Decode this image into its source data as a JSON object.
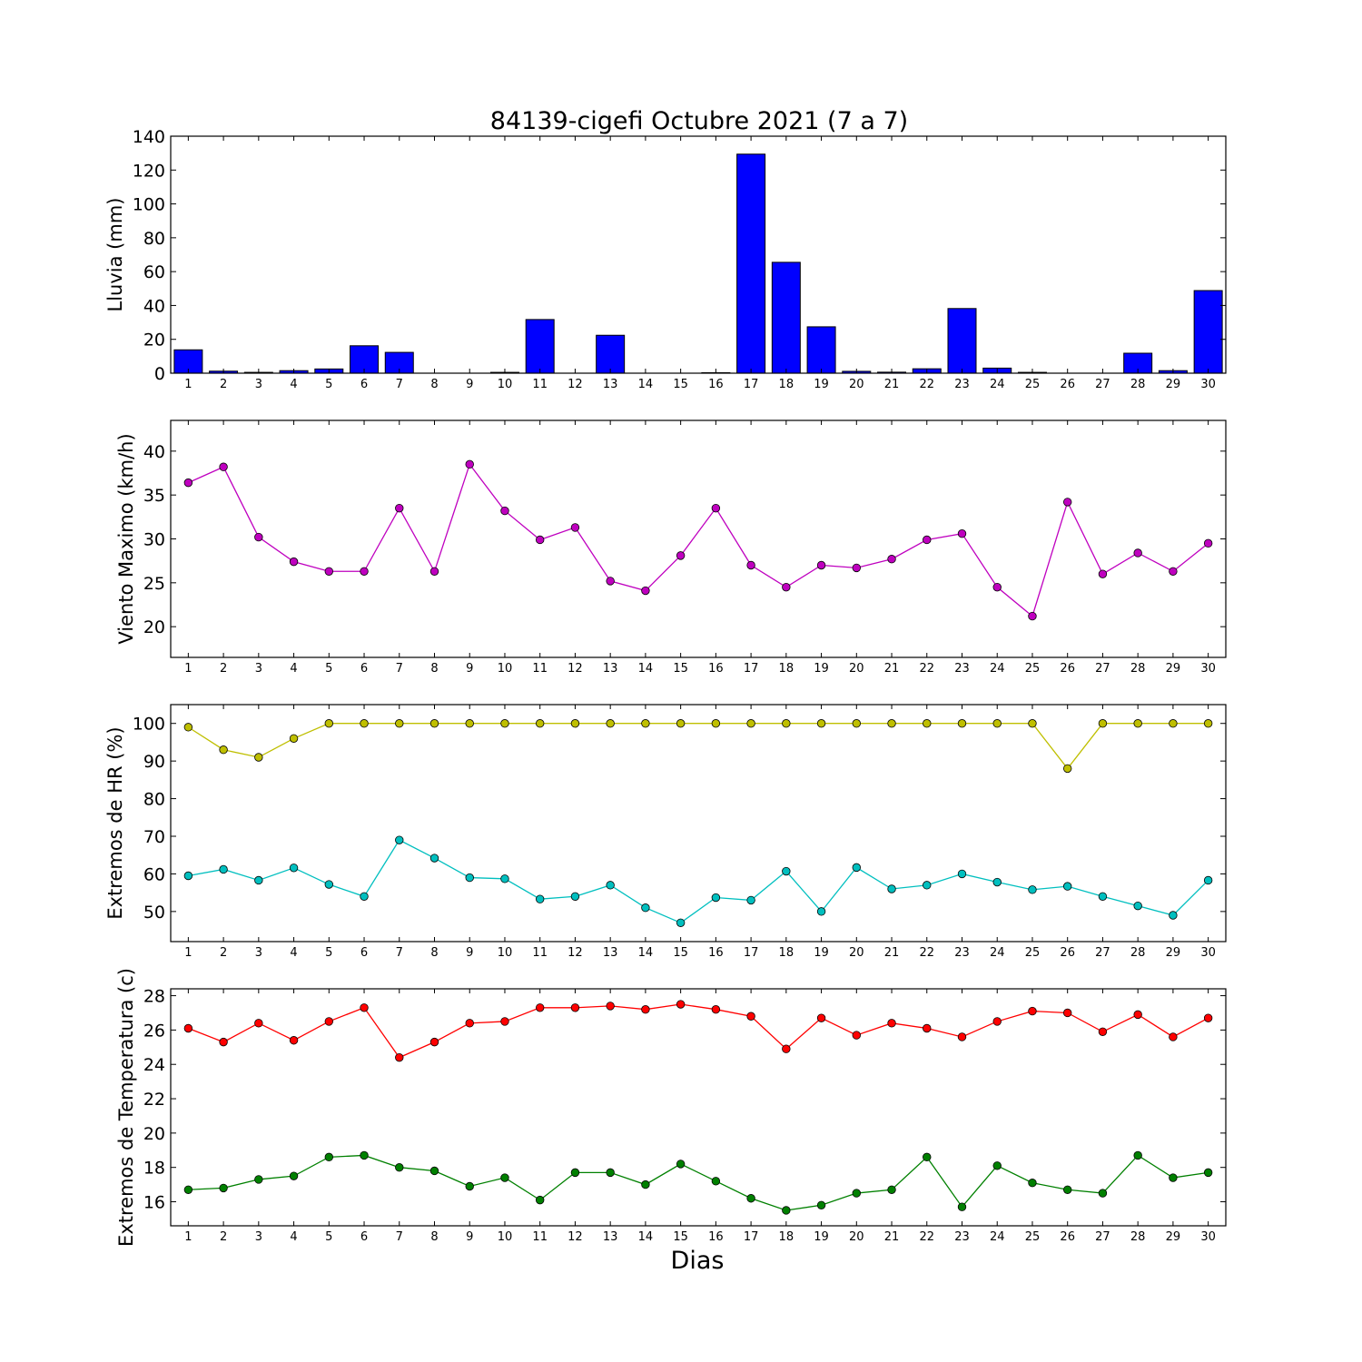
{
  "figure": {
    "title": "84139-cigefi Octubre 2021  (7 a 7)",
    "xlabel": "Dias"
  },
  "chart_data": [
    {
      "id": "lluvia",
      "type": "bar",
      "ylabel": "Lluvia (mm)",
      "ylim": [
        0,
        140
      ],
      "yticks": [
        0,
        20,
        40,
        60,
        80,
        100,
        120,
        140
      ],
      "x": [
        1,
        2,
        3,
        4,
        5,
        6,
        7,
        8,
        9,
        10,
        11,
        12,
        13,
        14,
        15,
        16,
        17,
        18,
        19,
        20,
        21,
        22,
        23,
        24,
        25,
        26,
        27,
        28,
        29,
        30
      ],
      "series": [
        {
          "color": "#0000ff",
          "values": [
            13.8,
            1.2,
            0.5,
            1.5,
            2.5,
            16.2,
            12.3,
            0,
            0,
            0.5,
            31.7,
            0,
            22.4,
            0,
            0,
            0.3,
            129.4,
            65.5,
            27.4,
            1.1,
            0.6,
            2.6,
            38.2,
            3.0,
            0.5,
            0,
            0,
            11.8,
            1.5,
            48.8
          ]
        }
      ],
      "grid": false
    },
    {
      "id": "viento",
      "type": "line",
      "ylabel": "Viento Maximo (km/h)",
      "ylim": [
        16.5,
        43.5
      ],
      "yticks": [
        20,
        25,
        30,
        35,
        40
      ],
      "x": [
        1,
        2,
        3,
        4,
        5,
        6,
        7,
        8,
        9,
        10,
        11,
        12,
        13,
        14,
        15,
        16,
        17,
        18,
        19,
        20,
        21,
        22,
        23,
        24,
        25,
        26,
        27,
        28,
        29,
        30
      ],
      "series": [
        {
          "color": "#bf00bf",
          "values": [
            36.4,
            38.2,
            30.2,
            27.4,
            26.3,
            26.3,
            33.5,
            26.3,
            38.5,
            33.2,
            29.9,
            31.3,
            25.2,
            24.1,
            28.1,
            33.5,
            27.0,
            24.5,
            27.0,
            26.7,
            27.7,
            29.9,
            30.6,
            24.5,
            21.2,
            34.2,
            26.0,
            28.4,
            26.3,
            29.5
          ]
        }
      ],
      "grid": false
    },
    {
      "id": "humedad",
      "type": "line",
      "ylabel": "Extremos de HR (%)",
      "ylim": [
        42,
        105
      ],
      "yticks": [
        50,
        60,
        70,
        80,
        90,
        100
      ],
      "x": [
        1,
        2,
        3,
        4,
        5,
        6,
        7,
        8,
        9,
        10,
        11,
        12,
        13,
        14,
        15,
        16,
        17,
        18,
        19,
        20,
        21,
        22,
        23,
        24,
        25,
        26,
        27,
        28,
        29,
        30
      ],
      "series": [
        {
          "color": "#bfbf00",
          "values": [
            99,
            93,
            91,
            96,
            100,
            100,
            100,
            100,
            100,
            100,
            100,
            100,
            100,
            100,
            100,
            100,
            100,
            100,
            100,
            100,
            100,
            100,
            100,
            100,
            100,
            88,
            100,
            100,
            100,
            100
          ]
        },
        {
          "color": "#00bfbf",
          "values": [
            59.5,
            61.2,
            58.3,
            61.6,
            57.2,
            54.0,
            69.0,
            64.2,
            59.0,
            58.7,
            53.3,
            54.0,
            57.0,
            51.0,
            47.0,
            53.7,
            53.0,
            60.7,
            50.0,
            61.7,
            56.0,
            57.0,
            60.0,
            57.8,
            55.8,
            56.7,
            54.0,
            51.5,
            49.0,
            58.3
          ]
        }
      ],
      "grid": false
    },
    {
      "id": "temperatura",
      "type": "line",
      "ylabel": "Extremos de Temperatura (c)",
      "ylim": [
        14.6,
        28.4
      ],
      "yticks": [
        16,
        18,
        20,
        22,
        24,
        26,
        28
      ],
      "x": [
        1,
        2,
        3,
        4,
        5,
        6,
        7,
        8,
        9,
        10,
        11,
        12,
        13,
        14,
        15,
        16,
        17,
        18,
        19,
        20,
        21,
        22,
        23,
        24,
        25,
        26,
        27,
        28,
        29,
        30
      ],
      "series": [
        {
          "color": "#ff0000",
          "values": [
            26.1,
            25.3,
            26.4,
            25.4,
            26.5,
            27.3,
            24.4,
            25.3,
            26.4,
            26.5,
            27.3,
            27.3,
            27.4,
            27.2,
            27.5,
            27.2,
            26.8,
            24.9,
            26.7,
            25.7,
            26.4,
            26.1,
            25.6,
            26.5,
            27.1,
            27.0,
            25.9,
            26.9,
            25.6,
            26.7
          ]
        },
        {
          "color": "#008000",
          "values": [
            16.7,
            16.8,
            17.3,
            17.5,
            18.6,
            18.7,
            18.0,
            17.8,
            16.9,
            17.4,
            16.1,
            17.7,
            17.7,
            17.0,
            18.2,
            17.2,
            16.2,
            15.5,
            15.8,
            16.5,
            16.7,
            18.6,
            15.7,
            18.1,
            17.1,
            16.7,
            16.5,
            18.7,
            17.4,
            17.7
          ]
        }
      ],
      "grid": false
    }
  ]
}
